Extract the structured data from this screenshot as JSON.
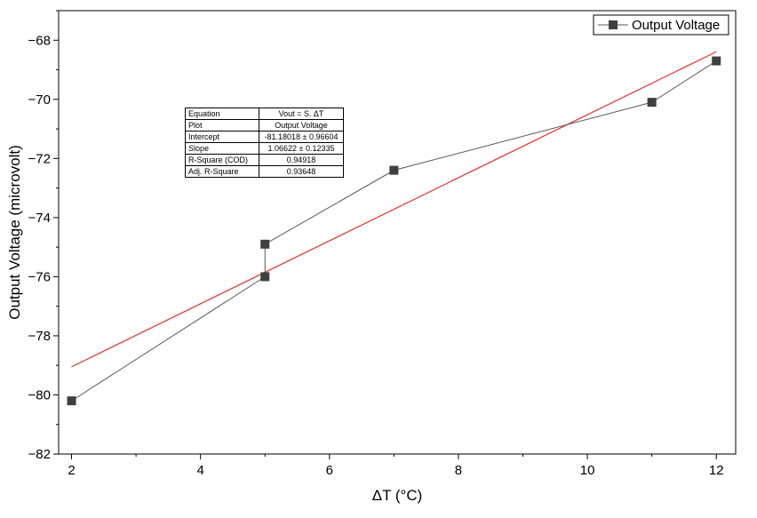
{
  "chart_data": {
    "type": "scatter",
    "xlabel": "ΔT (°C)",
    "ylabel": "Output Voltage (microvolt)",
    "xlim": [
      1.8,
      12.3
    ],
    "ylim": [
      -82,
      -67
    ],
    "xticks": [
      2,
      4,
      6,
      8,
      10,
      12
    ],
    "yticks": [
      -82,
      -80,
      -78,
      -76,
      -74,
      -72,
      -70,
      -68
    ],
    "legend_position": "top-right",
    "grid": false,
    "series": [
      {
        "name": "Output Voltage",
        "color": "#595959",
        "marker": "square",
        "x": [
          2,
          5,
          5,
          7,
          11,
          12
        ],
        "y": [
          -80.2,
          -76.0,
          -74.9,
          -72.4,
          -70.1,
          -68.7
        ]
      }
    ],
    "fit_line": {
      "color": "#e03030",
      "x": [
        2,
        12
      ],
      "y": [
        -79.05,
        -68.39
      ]
    },
    "fit_table": [
      {
        "key": "Equation",
        "value": "Vout = S. ΔT"
      },
      {
        "key": "Plot",
        "value": "Output Voltage"
      },
      {
        "key": "Intercept",
        "value": "-81.18018 ± 0.96604"
      },
      {
        "key": "Slope",
        "value": "1.06622 ± 0.12335"
      },
      {
        "key": "R-Square (COD)",
        "value": "0.94918"
      },
      {
        "key": "Adj. R-Square",
        "value": "0.93648"
      }
    ]
  }
}
